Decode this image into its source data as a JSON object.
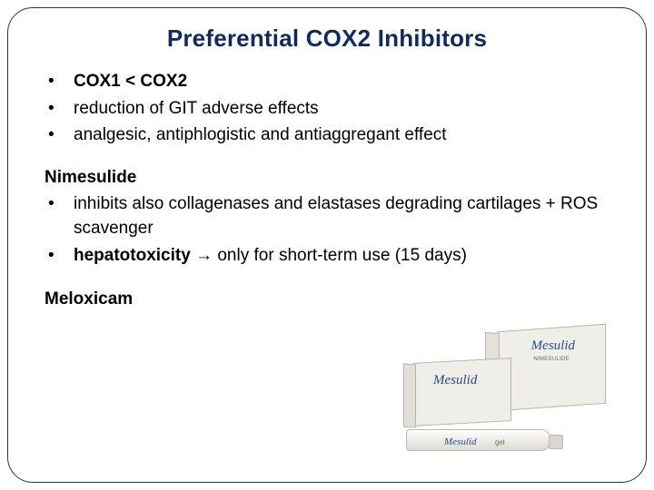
{
  "title": "Preferential COX2 Inhibitors",
  "intro_bullets": [
    {
      "text": "COX1 < COX2",
      "bold": true
    },
    {
      "text": "reduction of GIT adverse effects",
      "bold": false
    },
    {
      "text": "analgesic, antiphlogistic and antiaggregant effect",
      "bold": false
    }
  ],
  "nimesulide": {
    "heading": "Nimesulide",
    "bullets": {
      "b1": "inhibits also collagenases and elastases degrading cartilages + ROS scavenger",
      "b2_strong": "hepatotoxicity",
      "b2_rest": " → only for short-term use (15 days)"
    }
  },
  "meloxicam": "Meloxicam",
  "product": {
    "brand": "Mesulid",
    "sub": "NIMESULIDE",
    "form": "gel"
  },
  "colors": {
    "title": "#112a5c",
    "text": "#000000",
    "brand": "#2b4a88"
  }
}
